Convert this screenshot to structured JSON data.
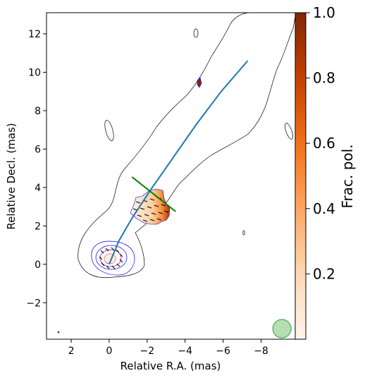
{
  "chart_data": {
    "type": "contour",
    "xlabel": "Relative R.A. (mas)",
    "ylabel": "Relative Decl. (mas)",
    "xlim": [
      3.3,
      -9.8
    ],
    "ylim": [
      -3.9,
      13.1
    ],
    "x_ticks": [
      2,
      0,
      -2,
      -4,
      -6,
      -8
    ],
    "x_tick_labels": [
      "2",
      "0",
      "−2",
      "−4",
      "−6",
      "−8"
    ],
    "y_ticks": [
      -2,
      0,
      2,
      4,
      6,
      8,
      10,
      12
    ],
    "y_tick_labels": [
      "−2",
      "0",
      "2",
      "4",
      "6",
      "8",
      "10",
      "12"
    ],
    "colorbar": {
      "label": "Frac. pol.",
      "range": [
        0.0,
        1.0
      ],
      "ticks": [
        0.2,
        0.4,
        0.6,
        0.8,
        1.0
      ],
      "tick_labels": [
        "0.2",
        "0.4",
        "0.6",
        "0.8",
        "1.0"
      ],
      "cmap": "Oranges"
    },
    "ridge_line": {
      "color": "#1f77b4",
      "points": [
        [
          0.0,
          0.0
        ],
        [
          -0.5,
          1.2
        ],
        [
          -1.2,
          2.4
        ],
        [
          -2.2,
          3.9
        ],
        [
          -3.4,
          5.6
        ],
        [
          -4.6,
          7.3
        ],
        [
          -5.9,
          9.0
        ],
        [
          -7.3,
          10.6
        ]
      ]
    },
    "cut_line": {
      "color": "#008000",
      "points": [
        [
          -1.2,
          4.55
        ],
        [
          -3.5,
          2.75
        ]
      ]
    },
    "beam": {
      "center": [
        -9.1,
        -3.35
      ],
      "color": "#2ca02c",
      "alpha": 0.35
    },
    "polarization_region_frac_pol": [
      0.05,
      0.15,
      0.35,
      0.6,
      0.9
    ],
    "colors": {
      "outer_contour": "#000000",
      "core_contours": "#0000ff",
      "core_inner": "#800080",
      "evpa": "#000000"
    }
  }
}
